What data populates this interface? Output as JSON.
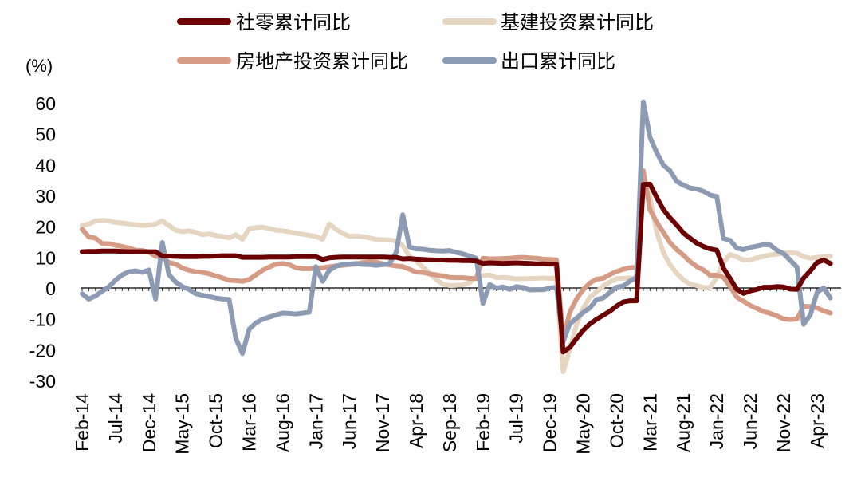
{
  "chart_data": {
    "type": "line",
    "unit_label": "(%)",
    "ylim": [
      -30,
      60
    ],
    "yticks": [
      -30,
      -20,
      -10,
      0,
      10,
      20,
      30,
      40,
      50,
      60
    ],
    "x_start": "Feb-14",
    "x_end": "Jun-23",
    "x_tick_labels": [
      "Feb-14",
      "Jul-14",
      "Dec-14",
      "May-15",
      "Oct-15",
      "Mar-16",
      "Aug-16",
      "Jan-17",
      "Jun-17",
      "Nov-17",
      "Apr-18",
      "Sep-18",
      "Feb-19",
      "Jul-19",
      "Dec-19",
      "May-20",
      "Oct-20",
      "Mar-21",
      "Aug-21",
      "Jan-22",
      "Jun-22",
      "Nov-22",
      "Apr-23"
    ],
    "legend_position": "top",
    "series": [
      {
        "name": "社零累计同比",
        "color": "#6b0000",
        "values": [
          12,
          12.1,
          12.1,
          12.2,
          12.2,
          12.2,
          12.1,
          12,
          12,
          12,
          12,
          12,
          10.6,
          10.6,
          10.5,
          10.4,
          10.4,
          10.4,
          10.5,
          10.5,
          10.6,
          10.7,
          10.7,
          10.7,
          10.2,
          10.2,
          10.2,
          10.2,
          10.3,
          10.3,
          10.3,
          10.3,
          10.4,
          10.4,
          10.4,
          10.4,
          9.5,
          10,
          10.2,
          10.3,
          10.3,
          10.3,
          10.3,
          10.3,
          10.3,
          10.3,
          10.2,
          10.2,
          9.7,
          9.8,
          9.6,
          9.5,
          9.4,
          9.3,
          9.3,
          9.2,
          9.2,
          9.1,
          9.1,
          9,
          8.2,
          8.4,
          8.3,
          8.2,
          8.3,
          8.4,
          8.3,
          8.2,
          8.1,
          8.1,
          8,
          8,
          -20.5,
          -19,
          -16.2,
          -13.5,
          -11.4,
          -9.9,
          -8.6,
          -7.3,
          -5.6,
          -4.3,
          -3.9,
          -3.9,
          33.8,
          33.9,
          29.6,
          25.7,
          23,
          20.7,
          18.1,
          16.4,
          14.8,
          13.7,
          12.9,
          12.5,
          6.7,
          3.3,
          -0.2,
          -1.5,
          -0.7,
          -0.2,
          0.5,
          0.5,
          0.7,
          0.6,
          -0.1,
          -0.2,
          3.5,
          5.8,
          8.5,
          9.3,
          8.2
        ]
      },
      {
        "name": "基建投资累计同比",
        "color": "#e6d5c0",
        "values": [
          20.5,
          21,
          22,
          22.2,
          22,
          21.5,
          21.3,
          21,
          20.8,
          20.5,
          20.7,
          21,
          22,
          20.5,
          19,
          18.5,
          18.8,
          18.3,
          17.5,
          17.8,
          17.3,
          17,
          16.5,
          17.5,
          16,
          19.5,
          19.8,
          20,
          19.5,
          19,
          18.8,
          18.5,
          18,
          17.7,
          17.3,
          17,
          16,
          21,
          19.3,
          18,
          17,
          17.1,
          16.9,
          16.5,
          16,
          15.9,
          15.8,
          15.5,
          14,
          10.5,
          9,
          7,
          5,
          3,
          1.5,
          1,
          1.1,
          1.3,
          2,
          3.8,
          4.3,
          4.5,
          3.6,
          3.7,
          3.5,
          3.2,
          3.3,
          3.3,
          3.4,
          3.5,
          3.4,
          3.5,
          -26.9,
          -19.7,
          -11.8,
          -6.3,
          -2.7,
          -1,
          0.9,
          2.2,
          3.3,
          3.4,
          3.5,
          3.4,
          35,
          29.7,
          18.4,
          11.8,
          7.8,
          5,
          2.9,
          1.5,
          1,
          0.4,
          0.4,
          3.7,
          8.6,
          11.1,
          10.3,
          9.3,
          9.4,
          10,
          10.5,
          11,
          11.2,
          11.5,
          11.7,
          11.5,
          10.4,
          9.9,
          10.2,
          10.4,
          10.5
        ]
      },
      {
        "name": "房地产投资累计同比",
        "color": "#d59b85",
        "values": [
          19.3,
          16.8,
          16.4,
          14.7,
          14.6,
          14.1,
          13.7,
          13.2,
          12.5,
          12.4,
          11.9,
          10.5,
          10.4,
          8.5,
          8,
          6.7,
          6,
          5.5,
          5.3,
          4.9,
          4.2,
          3.5,
          2.8,
          2.6,
          2.4,
          3,
          4.5,
          6,
          7,
          8,
          8.2,
          7.8,
          6.8,
          6.5,
          6.5,
          6.7,
          6.8,
          7.1,
          7.4,
          7.6,
          7.9,
          8,
          8.5,
          8.7,
          8.6,
          8.1,
          7.7,
          7.4,
          7.2,
          6.3,
          5.4,
          5.3,
          4.8,
          4.5,
          4.1,
          3.7,
          3.6,
          3.6,
          3.4,
          3.3,
          9.9,
          9.7,
          9.7,
          9.8,
          9.9,
          10.1,
          10.2,
          10,
          9.9,
          9.6,
          9.5,
          9.4,
          -16.3,
          -7.7,
          -3.3,
          -0.3,
          1.9,
          3.1,
          3.4,
          4.6,
          5.6,
          6.3,
          6.8,
          7,
          38.3,
          25.6,
          21.6,
          18.3,
          15,
          12.7,
          10.9,
          8.8,
          7.2,
          6.1,
          4.4,
          4.4,
          3.7,
          0.7,
          -2.7,
          -4,
          -5.4,
          -6.4,
          -7.4,
          -8,
          -8.8,
          -9.8,
          -10,
          -9.8,
          -5.7,
          -5.8,
          -6.2,
          -7.2,
          -7.9
        ]
      },
      {
        "name": "出口累计同比",
        "color": "#8c9ab4",
        "values": [
          -1.6,
          -3.4,
          -2.3,
          -0.8,
          0.6,
          2.8,
          4.5,
          5.5,
          5.8,
          5.3,
          6.1,
          -3.3,
          15,
          4.6,
          2.2,
          0.7,
          -0.2,
          -1.6,
          -2.1,
          -2.5,
          -3,
          -3.3,
          -3.5,
          -16,
          -21,
          -13.1,
          -11.1,
          -9.9,
          -9.2,
          -8.5,
          -7.9,
          -8,
          -8.2,
          -7.9,
          -7.6,
          7.2,
          2.4,
          6,
          7.3,
          7.9,
          8,
          8.2,
          7.9,
          7.8,
          7.6,
          7.8,
          8.2,
          11.7,
          24,
          13.6,
          12.9,
          12.8,
          12.5,
          12.3,
          12.2,
          12.4,
          11.8,
          11.3,
          10.6,
          9.9,
          -4.7,
          1.4,
          0.2,
          0.6,
          -0.2,
          0.7,
          0.4,
          -0.4,
          -0.3,
          -0.3,
          0.2,
          0.5,
          -17.2,
          -11.4,
          -9.6,
          -7.7,
          -6.2,
          -3.5,
          -3,
          -1.2,
          0.5,
          0.9,
          2.5,
          3.6,
          60.6,
          49.1,
          44.2,
          40.1,
          38.3,
          34.8,
          33.6,
          32.7,
          32.3,
          31.6,
          30.4,
          29.9,
          16.3,
          15.7,
          13.2,
          12.7,
          13.4,
          13.8,
          14.3,
          14.2,
          12.5,
          11.4,
          9.2,
          7,
          -11.5,
          -8.5,
          -1.2,
          0.3,
          -3
        ]
      }
    ]
  }
}
